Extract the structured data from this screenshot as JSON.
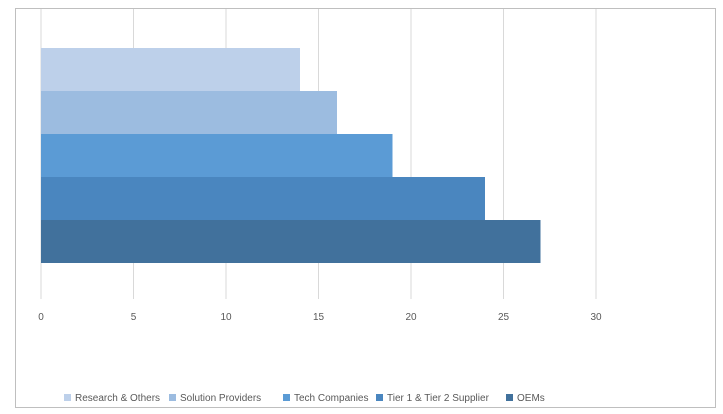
{
  "chart_data": {
    "type": "bar",
    "orientation": "horizontal",
    "title": "",
    "xlabel": "",
    "ylabel": "",
    "xlim": [
      0,
      30
    ],
    "x_ticks": [
      0,
      5,
      10,
      15,
      20,
      25,
      30
    ],
    "grid": "vertical",
    "legend_position": "bottom",
    "series": [
      {
        "name": "Research & Others",
        "value": 14,
        "color": "#bdd0ea"
      },
      {
        "name": "Solution Providers",
        "value": 16,
        "color": "#9cbce0"
      },
      {
        "name": "Tech Companies",
        "value": 19,
        "color": "#5b9bd5"
      },
      {
        "name": "Tier 1 & Tier 2 Supplier",
        "value": 24,
        "color": "#4a86bf"
      },
      {
        "name": "OEMs",
        "value": 27,
        "color": "#41719c"
      }
    ]
  }
}
